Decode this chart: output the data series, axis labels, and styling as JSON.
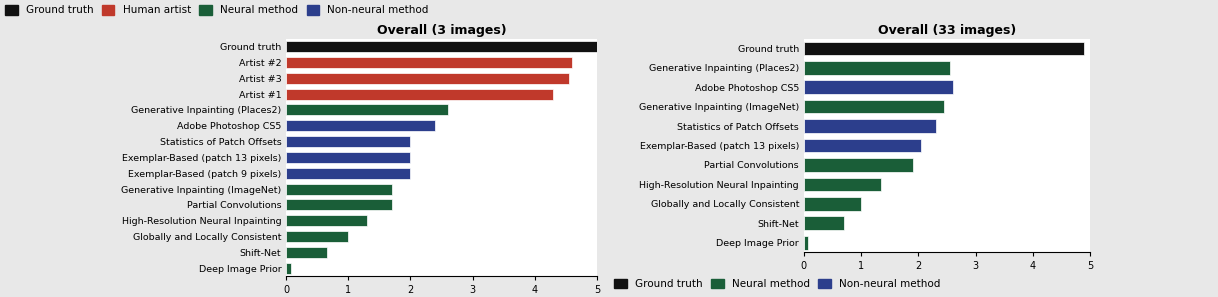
{
  "chart1": {
    "title": "Overall (3 images)",
    "labels": [
      "Ground truth",
      "Artist #2",
      "Artist #3",
      "Artist #1",
      "Generative Inpainting (Places2)",
      "Adobe Photoshop CS5",
      "Statistics of Patch Offsets",
      "Exemplar-Based (patch 13 pixels)",
      "Exemplar-Based (patch 9 pixels)",
      "Generative Inpainting (ImageNet)",
      "Partial Convolutions",
      "High-Resolution Neural Inpainting",
      "Globally and Locally Consistent",
      "Shift-Net",
      "Deep Image Prior"
    ],
    "values": [
      5.0,
      4.6,
      4.55,
      4.3,
      2.6,
      2.4,
      2.0,
      2.0,
      2.0,
      1.7,
      1.7,
      1.3,
      1.0,
      0.65,
      0.08
    ],
    "colors": [
      "#111111",
      "#c0392b",
      "#c0392b",
      "#c0392b",
      "#1a5e38",
      "#2c3e8c",
      "#2c3e8c",
      "#2c3e8c",
      "#2c3e8c",
      "#1a5e38",
      "#1a5e38",
      "#1a5e38",
      "#1a5e38",
      "#1a5e38",
      "#1a5e38"
    ]
  },
  "chart2": {
    "title": "Overall (33 images)",
    "labels": [
      "Ground truth",
      "Generative Inpainting (Places2)",
      "Adobe Photoshop CS5",
      "Generative Inpainting (ImageNet)",
      "Statistics of Patch Offsets",
      "Exemplar-Based (patch 13 pixels)",
      "Partial Convolutions",
      "High-Resolution Neural Inpainting",
      "Globally and Locally Consistent",
      "Shift-Net",
      "Deep Image Prior"
    ],
    "values": [
      4.9,
      2.55,
      2.6,
      2.45,
      2.3,
      2.05,
      1.9,
      1.35,
      1.0,
      0.7,
      0.08
    ],
    "colors": [
      "#111111",
      "#1a5e38",
      "#2c3e8c",
      "#1a5e38",
      "#2c3e8c",
      "#2c3e8c",
      "#1a5e38",
      "#1a5e38",
      "#1a5e38",
      "#1a5e38",
      "#1a5e38"
    ]
  },
  "legend_top": {
    "labels": [
      "Ground truth",
      "Human artist",
      "Neural method",
      "Non-neural method"
    ],
    "colors": [
      "#111111",
      "#c0392b",
      "#1a5e38",
      "#2c3e8c"
    ]
  },
  "legend_bottom": {
    "labels": [
      "Ground truth",
      "Neural method",
      "Non-neural method"
    ],
    "colors": [
      "#111111",
      "#1a5e38",
      "#2c3e8c"
    ]
  },
  "xlim": [
    0,
    5
  ],
  "xticks": [
    0,
    1,
    2,
    3,
    4,
    5
  ],
  "bar_height": 0.7,
  "fontsize_labels": 6.8,
  "fontsize_title": 9.0,
  "fontsize_ticks": 7.0,
  "fontsize_legend": 7.5,
  "bg_color": "#e8e8e8"
}
